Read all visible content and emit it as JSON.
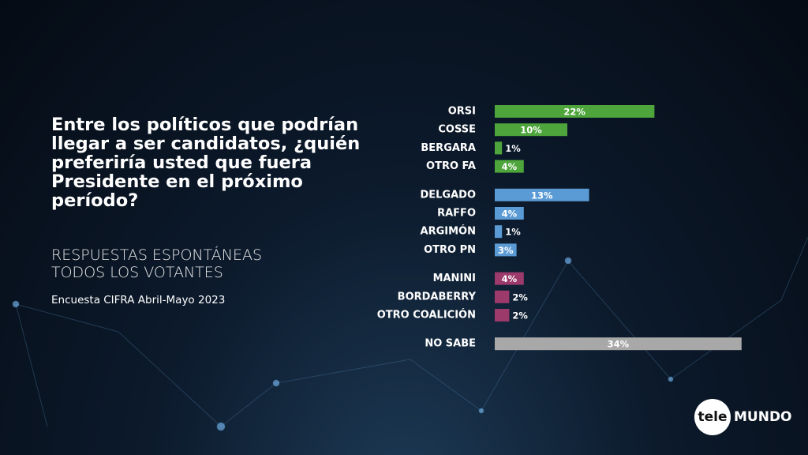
{
  "chart_data": {
    "type": "bar",
    "title": "Entre los políticos que podrían llegar a ser candidatos, ¿quién preferiría usted que fuera Presidente en el próximo período?",
    "subtitle": [
      "RESPUESTAS ESPONTÁNEAS",
      "TODOS LOS VOTANTES"
    ],
    "source": "Encuesta CIFRA Abril-Mayo 2023",
    "logo": [
      "tele",
      "MUNDO"
    ],
    "categories": [
      "ORSI",
      "COSSE",
      "BERGARA",
      "OTRO FA",
      "DELGADO",
      "RAFFO",
      "ARGIMÓN",
      "OTRO PN",
      "MANINI",
      "BORDABERRY",
      "OTRO COALICIÓN",
      "NO SABE"
    ],
    "values": [
      22,
      10,
      1,
      4,
      13,
      4,
      1,
      3,
      4,
      2,
      2,
      34
    ],
    "value_labels": [
      "22%",
      "10%",
      "1%",
      "4%",
      "13%",
      "4%",
      "1%",
      "3%",
      "4%",
      "2%",
      "2%",
      "34%"
    ],
    "colors": [
      "#4ea53c",
      "#4ea53c",
      "#4ea53c",
      "#4ea53c",
      "#5b9bd5",
      "#5b9bd5",
      "#5b9bd5",
      "#5b9bd5",
      "#9b3a6b",
      "#9b3a6b",
      "#9b3a6b",
      "#a8a8a8"
    ]
  }
}
